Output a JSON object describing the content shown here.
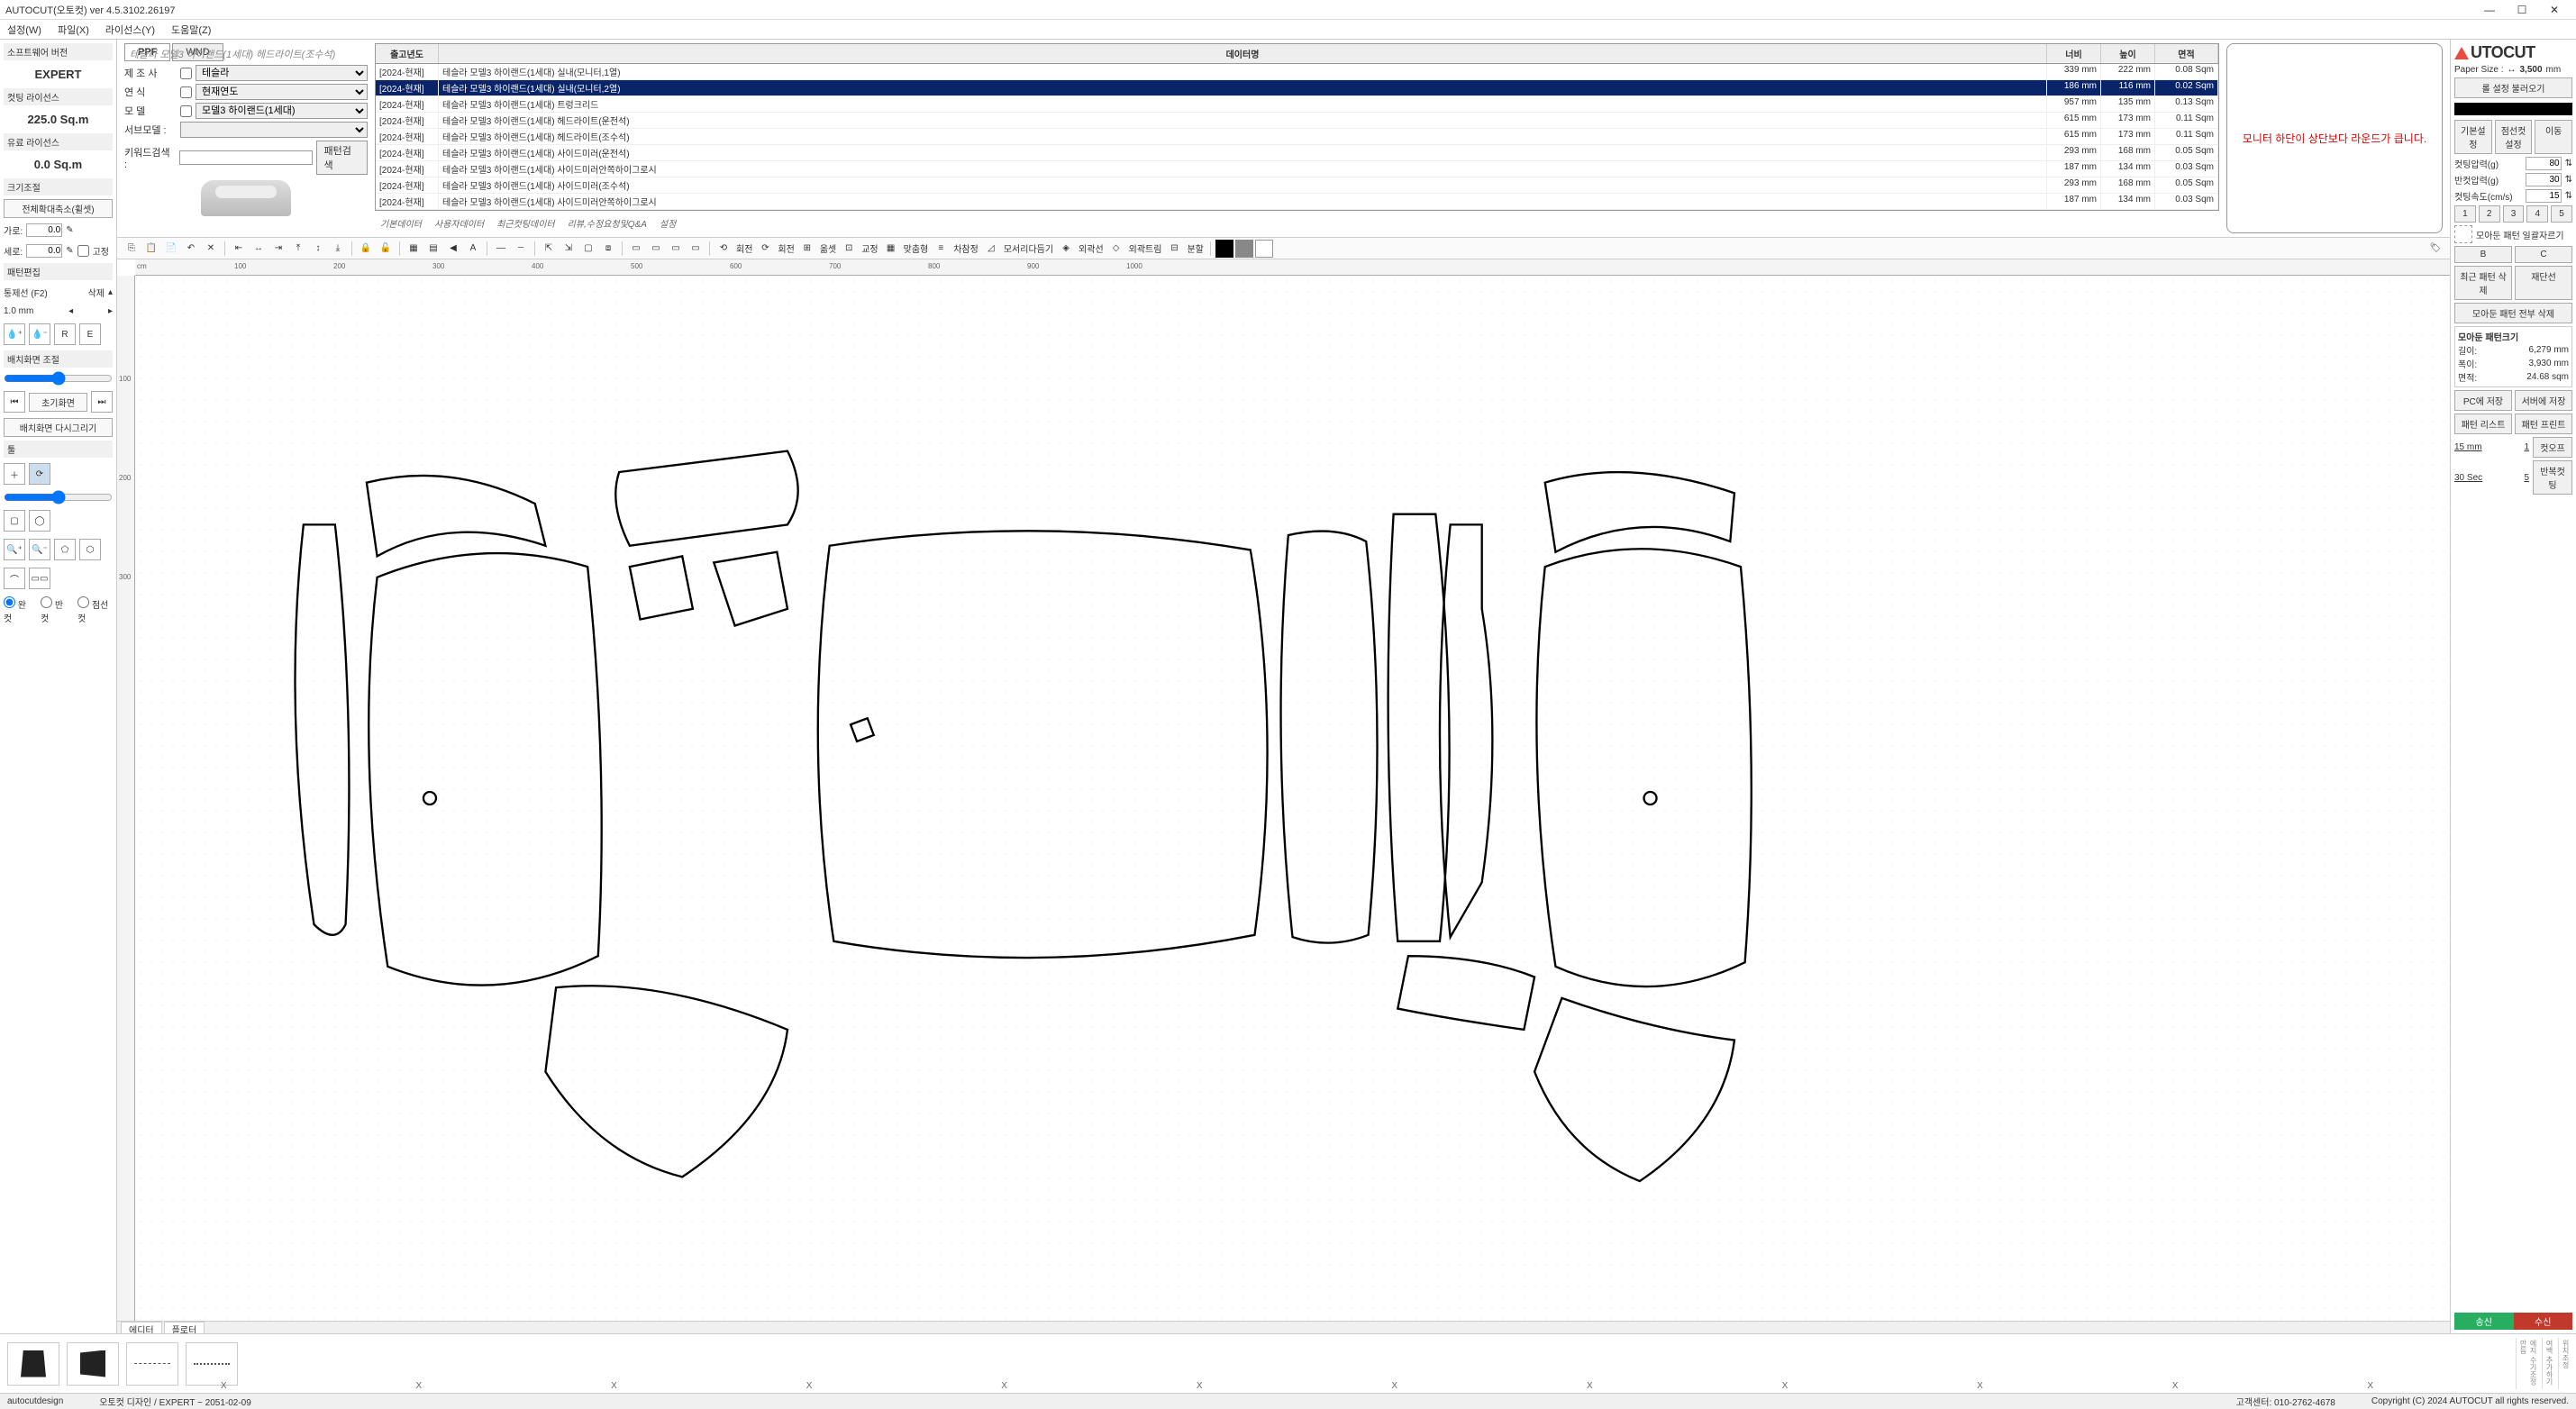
{
  "window": {
    "title": "AUTOCUT(오토컷) ver 4.5.3102.26197"
  },
  "menu": {
    "settings": "설정(W)",
    "file": "파일(X)",
    "license": "라이선스(Y)",
    "help": "도움말(Z)"
  },
  "breadcrumb": "테슬라 모델3 하이랜드(1세대) 헤드라이트(조수석)",
  "logo": {
    "text": "UTOCUT"
  },
  "left_panel": {
    "sw_version_label": "소프트웨어 버전",
    "sw_version_value": "EXPERT",
    "cutting_license_label": "컷팅 라이선스",
    "cutting_license_value": "225.0 Sq.m",
    "euro_license_label": "유료 라이선스",
    "euro_license_value": "0.0 Sq.m",
    "resize_label": "크기조절",
    "full_zoom_btn": "전체확대축소(휠셋)",
    "width_label": "가로:",
    "width_value": "0.0",
    "height_label": "세로:",
    "height_value": "0.0",
    "fix_label": "고정",
    "pattern_edit_label": "패턴편집",
    "control_line_label": "통제선 (F2)",
    "delete_label": "삭제",
    "control_value": "1.0 mm",
    "r_btn": "R",
    "e_btn": "E",
    "layout_adjust_label": "배치화면 조절",
    "init_screen_btn": "초기화면",
    "redraw_btn": "배치화면 다시그리기",
    "tool_label": "툴",
    "cut_full_label": "완 컷",
    "cut_half_label": "반 컷",
    "cut_dot_label": "점선컷"
  },
  "selection": {
    "tab_ppf": "PPF",
    "tab_wnd": "WND",
    "maker_label": "제  조  사",
    "maker_value": "테슬라",
    "year_label": "연        식",
    "year_value": "현재연도",
    "model_label": "모        델",
    "model_value": "모델3 하이랜드(1세대)",
    "submodel_label": "서브모델 :",
    "keyword_label": "키워드검색 :",
    "search_btn": "패턴검색"
  },
  "table": {
    "hdr_year": "출고년도",
    "hdr_name": "데이터명",
    "hdr_width": "너비",
    "hdr_height": "높이",
    "hdr_area": "면적",
    "rows": [
      {
        "y": "[2024-현재]",
        "n": "테슬라 모델3 하이랜드(1세대) 실내(모니터,1열)",
        "w": "339 mm",
        "h": "222 mm",
        "a": "0.08 Sqm"
      },
      {
        "y": "[2024-현재]",
        "n": "테슬라 모델3 하이랜드(1세대) 실내(모니터,2열)",
        "w": "186 mm",
        "h": "116 mm",
        "a": "0.02 Sqm"
      },
      {
        "y": "[2024-현재]",
        "n": "테슬라 모델3 하이랜드(1세대) 트렁크리드",
        "w": "957 mm",
        "h": "135 mm",
        "a": "0.13 Sqm"
      },
      {
        "y": "[2024-현재]",
        "n": "테슬라 모델3 하이랜드(1세대) 헤드라이트(운전석)",
        "w": "615 mm",
        "h": "173 mm",
        "a": "0.11 Sqm"
      },
      {
        "y": "[2024-현재]",
        "n": "테슬라 모델3 하이랜드(1세대) 헤드라이트(조수석)",
        "w": "615 mm",
        "h": "173 mm",
        "a": "0.11 Sqm"
      },
      {
        "y": "[2024-현재]",
        "n": "테슬라 모델3 하이랜드(1세대) 사이드미러(운전석)",
        "w": "293 mm",
        "h": "168 mm",
        "a": "0.05 Sqm"
      },
      {
        "y": "[2024-현재]",
        "n": "테슬라 모델3 하이랜드(1세대) 사이드미러안쪽하이그로시",
        "w": "187 mm",
        "h": "134 mm",
        "a": "0.03 Sqm"
      },
      {
        "y": "[2024-현재]",
        "n": "테슬라 모델3 하이랜드(1세대) 사이드미러(조수석)",
        "w": "293 mm",
        "h": "168 mm",
        "a": "0.05 Sqm"
      },
      {
        "y": "[2024-현재]",
        "n": "테슬라 모델3 하이랜드(1세대) 사이드미러안쪽하이그로시",
        "w": "187 mm",
        "h": "134 mm",
        "a": "0.03 Sqm"
      }
    ],
    "selected_index": 1,
    "sub_tabs": {
      "t1": "기본데이터",
      "t2": "사용자데이터",
      "t3": "최근컷팅데이터",
      "t4": "리뷰,수정요청및Q&A",
      "t5": "설정"
    }
  },
  "preview": {
    "message": "모니터 하단이 상단보다 라운드가 큽니다."
  },
  "toolbar_labels": {
    "flip": "회전",
    "rotate": "회전",
    "move": "옮셋",
    "align": "교정",
    "center": "맞춤형",
    "spacing": "차참정",
    "corner": "모서리다듬기",
    "outline": "외곽선",
    "outtrim": "외곽트림",
    "split": "분할"
  },
  "ruler": {
    "unit": "cm",
    "h_ticks": [
      "100",
      "200",
      "300",
      "400",
      "500",
      "600",
      "700",
      "800",
      "900",
      "1000"
    ],
    "v_ticks": [
      "100",
      "200",
      "300"
    ]
  },
  "canvas_tabs": {
    "editor": "에디터",
    "plotter": "플로터"
  },
  "right_panel": {
    "paper_size_label": "Paper Size :",
    "paper_size_value": "3,500",
    "paper_size_unit": "mm",
    "load_roll_btn": "롤 설정 불러오기",
    "basic_tab": "기본설정",
    "dotted_tab": "점선컷설정",
    "move_tab": "이동",
    "cut_pressure_label": "컷팅압력(g)",
    "cut_pressure_value": "80",
    "half_pressure_label": "반컷압력(g)",
    "half_pressure_value": "30",
    "cut_speed_label": "컷팅속도(cm/s)",
    "cut_speed_value": "15",
    "page_1": "1",
    "page_2": "2",
    "page_3": "3",
    "page_4": "4",
    "page_5": "5",
    "tab_b": "B",
    "tab_c": "C",
    "collect_cutter_label": "모아둔 패턴 일괄자르기",
    "recent_delete_btn": "최근 패턴 삭제",
    "recut_btn": "재단선",
    "delete_all_btn": "모아둔 패턴 전부 삭제",
    "pattern_size_label": "모아둔 패턴크기",
    "length_label": "길이:",
    "length_value": "6,279 mm",
    "width2_label": "폭이:",
    "width2_value": "3,930 mm",
    "area_label": "면적:",
    "area_value": "24.68 sqm",
    "save_pc_btn": "PC에 저장",
    "save_server_btn": "서버에 저장",
    "pattern_list_btn": "패턴 리스트",
    "pattern_print_btn": "패턴 프린트",
    "margin_value": "15 mm",
    "copies_value": "1",
    "cutoff_btn": "컷오프",
    "interval_value": "30 Sec",
    "repeat_count": "5",
    "repeat_btn": "반복컷팅",
    "send_label": "송신",
    "recv_label": "수신"
  },
  "status": {
    "left": "autocutdesign",
    "center": "오토컷 디자인 / EXPERT ~ 2051-02-09",
    "customer": "고객센터: 010-2762-4678",
    "copyright": "Copyright (C) 2024 AUTOCUT all rights reserved."
  },
  "colors": {
    "selected_row_bg": "#0a246a",
    "warning_text": "#d00",
    "send_bg": "#27ae60",
    "recv_bg": "#c0392b",
    "logo_accent": "#e74c3c"
  }
}
